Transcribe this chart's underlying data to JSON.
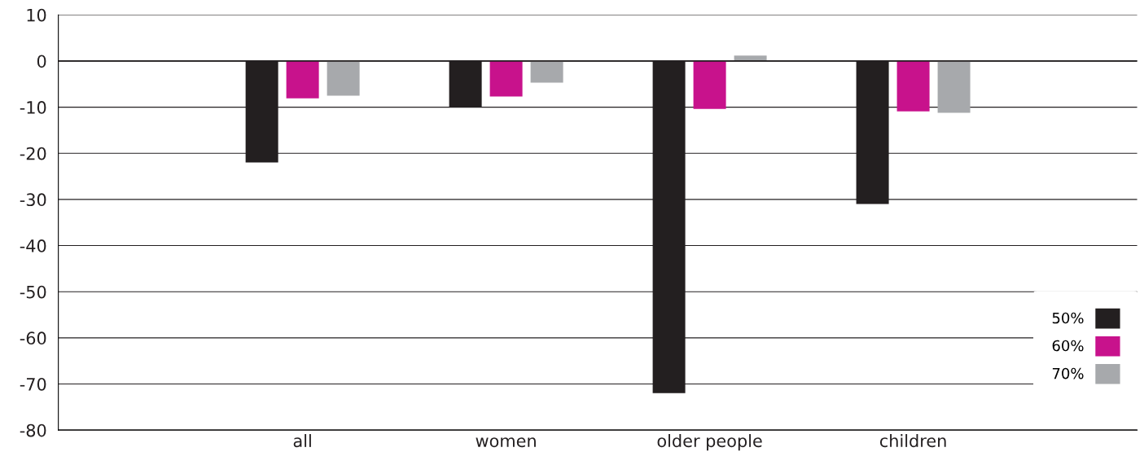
{
  "chart_data": {
    "type": "bar",
    "categories": [
      "all",
      "women",
      "older people",
      "children"
    ],
    "series": [
      {
        "name": "50%",
        "color": "#231f20",
        "values": [
          -22,
          -10,
          -72,
          -31
        ]
      },
      {
        "name": "60%",
        "color": "#c8128c",
        "values": [
          -8.1,
          -7.7,
          -10.4,
          -10.9
        ]
      },
      {
        "name": "70%",
        "color": "#a7a9ac",
        "values": [
          -7.5,
          -4.7,
          1.2,
          -11.2
        ]
      }
    ],
    "ylim": [
      -80,
      10
    ],
    "yticks": [
      -80,
      -70,
      -60,
      -50,
      -40,
      -30,
      -20,
      -10,
      0,
      10
    ],
    "grid": "y",
    "legend": "right"
  }
}
